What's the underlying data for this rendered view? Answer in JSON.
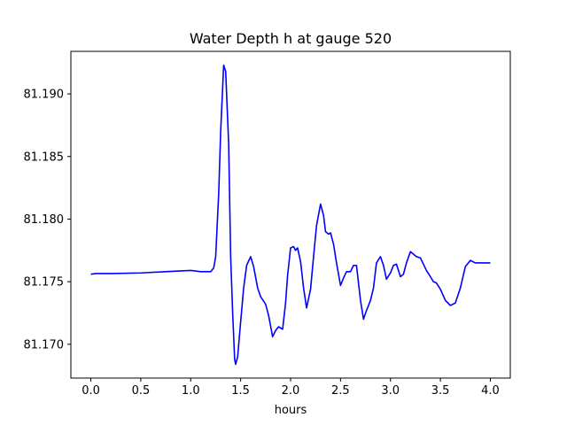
{
  "chart_data": {
    "type": "line",
    "title": "Water Depth h at gauge 520",
    "xlabel": "hours",
    "ylabel": "",
    "xlim": [
      -0.2,
      4.2
    ],
    "ylim": [
      81.1673,
      81.1934
    ],
    "grid": false,
    "x_ticks": [
      0.0,
      0.5,
      1.0,
      1.5,
      2.0,
      2.5,
      3.0,
      3.5,
      4.0
    ],
    "x_tick_labels": [
      "0.0",
      "0.5",
      "1.0",
      "1.5",
      "2.0",
      "2.5",
      "3.0",
      "3.5",
      "4.0"
    ],
    "y_ticks": [
      81.17,
      81.175,
      81.18,
      81.185,
      81.19
    ],
    "y_tick_labels": [
      "81.170",
      "81.175",
      "81.180",
      "81.185",
      "81.190"
    ],
    "series": [
      {
        "color": "#0000ff",
        "x": [
          0.0,
          0.05,
          0.2,
          0.5,
          0.75,
          1.0,
          1.1,
          1.2,
          1.23,
          1.25,
          1.28,
          1.3,
          1.33,
          1.35,
          1.38,
          1.4,
          1.42,
          1.44,
          1.45,
          1.47,
          1.5,
          1.53,
          1.56,
          1.6,
          1.63,
          1.67,
          1.7,
          1.75,
          1.78,
          1.82,
          1.85,
          1.88,
          1.92,
          1.95,
          1.97,
          2.0,
          2.03,
          2.05,
          2.07,
          2.1,
          2.13,
          2.16,
          2.2,
          2.23,
          2.26,
          2.3,
          2.33,
          2.35,
          2.38,
          2.4,
          2.43,
          2.46,
          2.5,
          2.53,
          2.56,
          2.6,
          2.63,
          2.66,
          2.7,
          2.73,
          2.76,
          2.8,
          2.83,
          2.86,
          2.9,
          2.93,
          2.96,
          3.0,
          3.03,
          3.06,
          3.1,
          3.13,
          3.16,
          3.2,
          3.23,
          3.26,
          3.3,
          3.33,
          3.36,
          3.4,
          3.43,
          3.46,
          3.5,
          3.55,
          3.6,
          3.65,
          3.7,
          3.75,
          3.8,
          3.85,
          3.9,
          3.95,
          4.0
        ],
        "y": [
          81.1756,
          81.17565,
          81.17565,
          81.1757,
          81.1758,
          81.1759,
          81.1758,
          81.1758,
          81.1761,
          81.177,
          81.182,
          81.187,
          81.1923,
          81.1918,
          81.186,
          81.177,
          81.1725,
          81.1688,
          81.1684,
          81.169,
          81.1718,
          81.1745,
          81.1763,
          81.177,
          81.1762,
          81.1745,
          81.1738,
          81.1732,
          81.1723,
          81.1706,
          81.1711,
          81.1714,
          81.1712,
          81.1733,
          81.1755,
          81.1777,
          81.1778,
          81.1775,
          81.1777,
          81.1766,
          81.1745,
          81.1729,
          81.1744,
          81.177,
          81.1795,
          81.1812,
          81.1803,
          81.179,
          81.1788,
          81.1789,
          81.178,
          81.1765,
          81.1747,
          81.1753,
          81.1758,
          81.1758,
          81.1763,
          81.1763,
          81.1735,
          81.172,
          81.1727,
          81.1735,
          81.1745,
          81.1765,
          81.177,
          81.1763,
          81.1752,
          81.1757,
          81.1763,
          81.1764,
          81.1754,
          81.1756,
          81.1765,
          81.1774,
          81.1772,
          81.177,
          81.1769,
          81.1764,
          81.1759,
          81.1754,
          81.175,
          81.1749,
          81.1744,
          81.1735,
          81.1731,
          81.1733,
          81.1745,
          81.1762,
          81.1767,
          81.1765,
          81.1765,
          81.1765,
          81.1765
        ]
      }
    ]
  }
}
